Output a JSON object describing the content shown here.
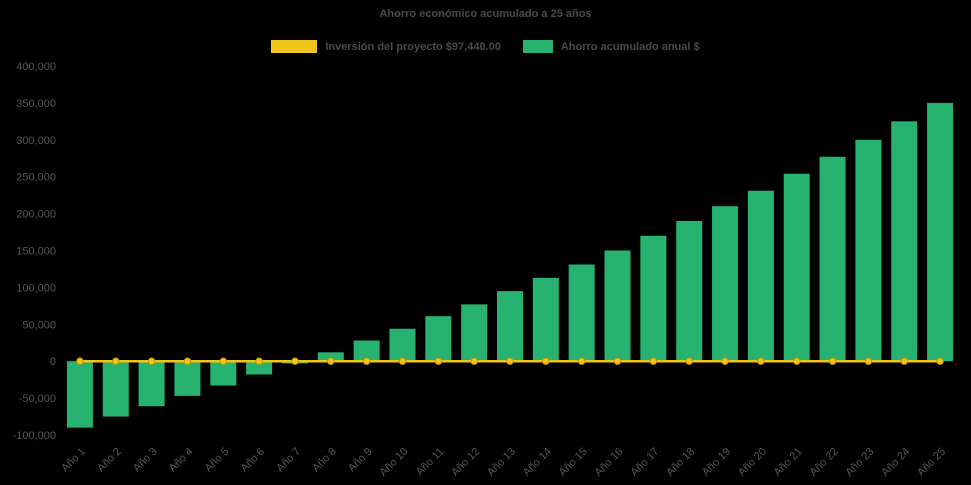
{
  "colors": {
    "background": "#000000",
    "bar_green": "#27b270",
    "line_yellow": "#f0c419",
    "marker_stroke": "#c79a00",
    "text_gray": "#4a4a4a",
    "axis_text_gray": "#555555"
  },
  "legend": {
    "investment_label": "Inversión del proyecto $97,440.00",
    "savings_label": "Ahorro acumulado anual $"
  },
  "chart_data": {
    "type": "bar",
    "title": "Ahorro económico acumulado a 25 años",
    "categories": [
      "Año 1",
      "Año 2",
      "Año 3",
      "Año 4",
      "Año 5",
      "Año 6",
      "Año 7",
      "Año 8",
      "Año 9",
      "Año 10",
      "Año 11",
      "Año 12",
      "Año 13",
      "Año 14",
      "Año 15",
      "Año 16",
      "Año 17",
      "Año 18",
      "Año 19",
      "Año 20",
      "Año 21",
      "Año 22",
      "Año 23",
      "Año 24",
      "Año 25"
    ],
    "series": [
      {
        "name": "Inversión del proyecto $97,440.00",
        "type": "line",
        "color": "#f0c419",
        "values": [
          0,
          0,
          0,
          0,
          0,
          0,
          0,
          0,
          0,
          0,
          0,
          0,
          0,
          0,
          0,
          0,
          0,
          0,
          0,
          0,
          0,
          0,
          0,
          0,
          0
        ]
      },
      {
        "name": "Ahorro acumulado anual $",
        "type": "bar",
        "color": "#27b270",
        "values": [
          -90000,
          -75000,
          -61000,
          -47000,
          -33000,
          -18000,
          -3000,
          12000,
          28000,
          44000,
          61000,
          77000,
          95000,
          113000,
          131000,
          150000,
          170000,
          190000,
          210000,
          231000,
          254000,
          277000,
          300000,
          325000,
          350000
        ]
      }
    ],
    "xlabel": "",
    "ylabel": "",
    "ylim": [
      -100000,
      400000
    ],
    "y_tick_step": 50000,
    "grid": false,
    "legend_position": "top"
  }
}
